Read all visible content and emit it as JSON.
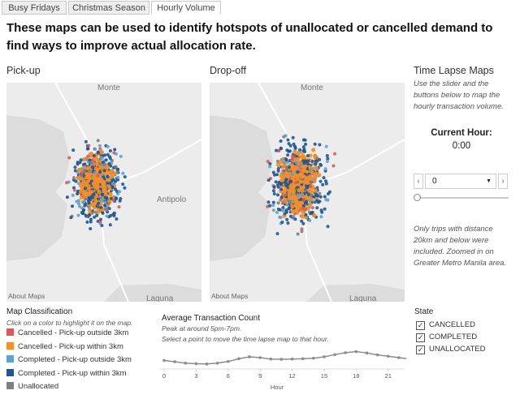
{
  "tabs": [
    "Busy Fridays",
    "Christmas Season",
    "Hourly Volume"
  ],
  "heading": "These maps can be used to identify hotspots of unallocated or cancelled demand to find ways to improve actual allocation rate.",
  "maps": [
    {
      "title": "Pick-up",
      "places": [
        "Monte",
        "Antipolo",
        "Laguna"
      ],
      "attribution": "About Maps"
    },
    {
      "title": "Drop-off",
      "places": [
        "Monte",
        "Laguna"
      ],
      "attribution": "About Maps"
    }
  ],
  "side": {
    "title": "Time Lapse Maps",
    "instructions": "Use the slider and the buttons below to map the hourly transaction volume.",
    "current_label": "Current Hour:",
    "current_value": "0:00",
    "dropdown": "0",
    "note": "Only trips with distance 20km and below were included. Zoomed in on Greater Metro Manila area."
  },
  "legend": {
    "title": "Map Classification",
    "hint": "Click on a color to highlight it on the map.",
    "items": [
      {
        "label": "Cancelled - Pick-up outside 3km",
        "color": "#e15759"
      },
      {
        "label": "Cancelled - Pick-up within 3km",
        "color": "#f28e2b"
      },
      {
        "label": "Completed - Pick-up outside 3km",
        "color": "#5fa2ce"
      },
      {
        "label": "Completed - Pick-up within 3km",
        "color": "#1f5591"
      },
      {
        "label": "Unallocated",
        "color": "#7f7f7f"
      }
    ]
  },
  "state": {
    "title": "State",
    "options": [
      "CANCELLED",
      "COMPLETED",
      "UNALLOCATED"
    ]
  },
  "chart_data": {
    "type": "line",
    "title": "Average Transaction Count",
    "subtitle": "Peak at around 5pm-7pm.",
    "subtitle2": "Select a point to move the time lapse map to that hour.",
    "x": [
      0,
      1,
      2,
      3,
      4,
      5,
      6,
      7,
      8,
      9,
      10,
      11,
      12,
      13,
      14,
      15,
      16,
      17,
      18,
      19,
      20,
      21,
      22,
      23
    ],
    "values": [
      40,
      35,
      30,
      28,
      27,
      30,
      36,
      46,
      53,
      50,
      45,
      44,
      45,
      46,
      48,
      53,
      61,
      68,
      72,
      67,
      60,
      55,
      50,
      45
    ],
    "color": "#8c8c8c",
    "xlim": [
      0,
      23
    ],
    "ylim": [
      0,
      100
    ],
    "xticks": [
      0,
      3,
      6,
      9,
      12,
      15,
      18,
      21
    ],
    "xlabel": "Hour"
  }
}
